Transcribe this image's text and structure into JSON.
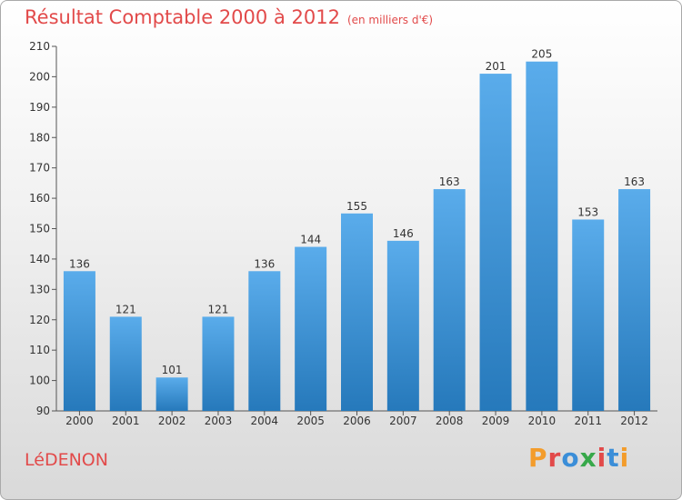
{
  "header": {
    "title": "Résultat Comptable 2000 à 2012",
    "unit": "(en milliers d'€)"
  },
  "footer": {
    "city": "LéDENON",
    "logo_text": "Proxiti"
  },
  "colors": {
    "title": "#e24a4a",
    "bar_top": "#5aaceb",
    "bar_bottom": "#2679bb",
    "logo": [
      "#f39c2b",
      "#e24a4a",
      "#3b8ed8",
      "#37a84a",
      "#e24a4a",
      "#3b8ed8",
      "#f39c2b"
    ]
  },
  "chart_data": {
    "type": "bar",
    "title": "Résultat Comptable 2000 à 2012",
    "categories": [
      "2000",
      "2001",
      "2002",
      "2003",
      "2004",
      "2005",
      "2006",
      "2007",
      "2008",
      "2009",
      "2010",
      "2011",
      "2012"
    ],
    "values": [
      136,
      121,
      101,
      121,
      136,
      144,
      155,
      146,
      163,
      201,
      205,
      153,
      163
    ],
    "ylim": [
      90,
      210
    ],
    "yticks": [
      90,
      100,
      110,
      120,
      130,
      140,
      150,
      160,
      170,
      180,
      190,
      200,
      210
    ],
    "grid": false,
    "xlabel": "",
    "ylabel": ""
  }
}
